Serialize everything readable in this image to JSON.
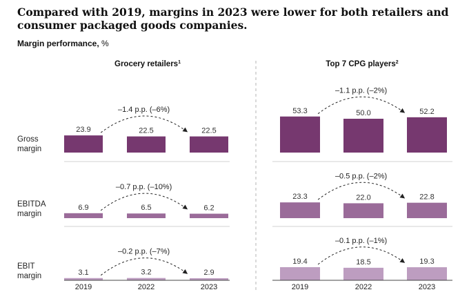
{
  "title": "Compared with 2019, margins in 2023 were lower for both retailers and consumer packaged goods companies.",
  "subtitle": "Margin performance,",
  "subtitle_unit": "%",
  "chart_data": {
    "type": "bar",
    "categories": [
      "2019",
      "2022",
      "2023"
    ],
    "row_labels": [
      [
        "Gross",
        "margin"
      ],
      [
        "EBITDA",
        "margin"
      ],
      [
        "EBIT",
        "margin"
      ]
    ],
    "colors": [
      "#76386f",
      "#9a6b99",
      "#bd9dc0"
    ],
    "panels": [
      {
        "title": "Grocery retailers",
        "footnote": "1",
        "rows": [
          {
            "metric": "Gross margin",
            "values": [
              23.9,
              22.5,
              22.5
            ],
            "labels": [
              "23.9",
              "22.5",
              "22.5"
            ],
            "change": "–1.4 p.p. (–6%)"
          },
          {
            "metric": "EBITDA margin",
            "values": [
              6.9,
              6.5,
              6.2
            ],
            "labels": [
              "6.9",
              "6.5",
              "6.2"
            ],
            "change": "–0.7 p.p. (–10%)"
          },
          {
            "metric": "EBIT margin",
            "values": [
              3.1,
              3.2,
              2.9
            ],
            "labels": [
              "3.1",
              "3.2",
              "2.9"
            ],
            "change": "–0.2 p.p. (–7%)"
          }
        ]
      },
      {
        "title": "Top 7 CPG players",
        "footnote": "2",
        "rows": [
          {
            "metric": "Gross margin",
            "values": [
              53.3,
              50.0,
              52.2
            ],
            "labels": [
              "53.3",
              "50.0",
              "52.2"
            ],
            "change": "–1.1 p.p. (–2%)"
          },
          {
            "metric": "EBITDA margin",
            "values": [
              23.3,
              22.0,
              22.8
            ],
            "labels": [
              "23.3",
              "22.0",
              "22.8"
            ],
            "change": "–0.5 p.p. (–2%)"
          },
          {
            "metric": "EBIT margin",
            "values": [
              19.4,
              18.5,
              19.3
            ],
            "labels": [
              "19.4",
              "18.5",
              "19.3"
            ],
            "change": "–0.1 p.p. (–1%)"
          }
        ]
      }
    ]
  }
}
